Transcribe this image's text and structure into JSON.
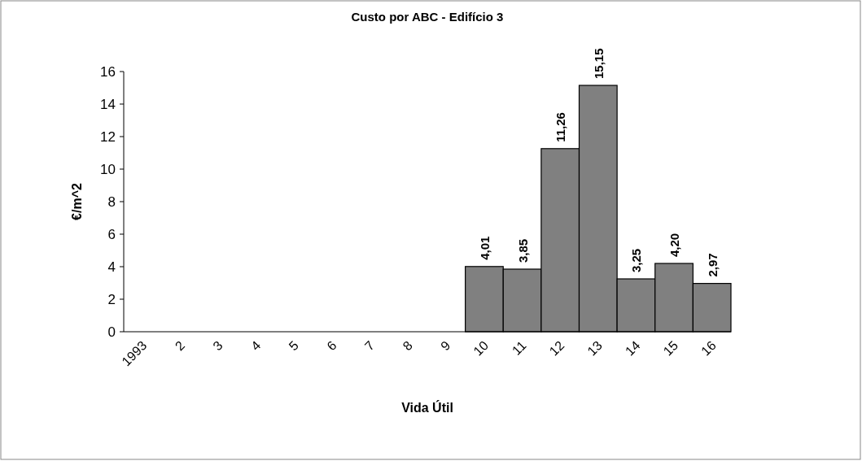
{
  "chart_data": {
    "type": "bar",
    "title": "Custo por ABC - Edifício 3",
    "xlabel": "Vida Útil",
    "ylabel": "€/m^2",
    "categories": [
      "1993",
      "2",
      "3",
      "4",
      "5",
      "6",
      "7",
      "8",
      "9",
      "10",
      "11",
      "12",
      "13",
      "14",
      "15",
      "16"
    ],
    "values": [
      null,
      null,
      null,
      null,
      null,
      null,
      null,
      null,
      null,
      4.01,
      3.85,
      11.26,
      15.15,
      3.25,
      4.2,
      2.97
    ],
    "value_labels": [
      null,
      null,
      null,
      null,
      null,
      null,
      null,
      null,
      null,
      "4,01",
      "3,85",
      "11,26",
      "15,15",
      "3,25",
      "4,20",
      "2,97"
    ],
    "color": "#808080",
    "ylim": [
      0,
      16
    ],
    "yticks": [
      0,
      2,
      4,
      6,
      8,
      10,
      12,
      14,
      16
    ],
    "grid": false
  }
}
